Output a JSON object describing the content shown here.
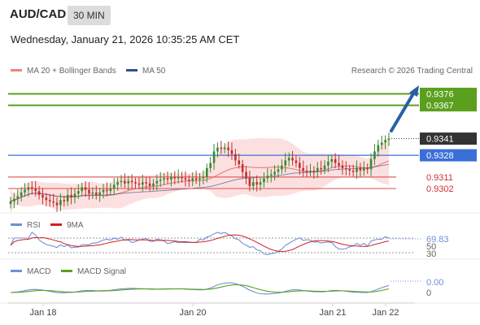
{
  "header": {
    "symbol": "AUD/CAD",
    "interval": "30 MIN",
    "datetime": "Wednesday, January 21, 2026 10:35:25 AM CET"
  },
  "legend": {
    "ma20_label": "MA 20 + Bollinger Bands",
    "ma50_label": "MA 50",
    "copyright": "Research © 2026 Trading Central",
    "rsi_label": "RSI",
    "rsi_ma_label": "9MA",
    "macd_label": "MACD",
    "macd_signal_label": "MACD Signal"
  },
  "colors": {
    "ma20": "#f08080",
    "ma50": "#2f4f8f",
    "bollinger_fill": "#fbd5d5",
    "resistance": "#5aa01e",
    "support": "#e06060",
    "pivot": "#3b6fd8",
    "current": "#333333",
    "candle_up": "#3a8a2e",
    "candle_down": "#c03030",
    "rsi": "#6f8fd8",
    "rsi_ma": "#d02020",
    "macd": "#6f8fd8",
    "macd_signal": "#5aa01e",
    "arrow": "#2a5fa8"
  },
  "levels": [
    {
      "label": "0.9376",
      "value": 0.9376,
      "kind": "resistance"
    },
    {
      "label": "0.9367",
      "value": 0.9367,
      "kind": "resistance"
    },
    {
      "label": "0.9341",
      "value": 0.9341,
      "kind": "current"
    },
    {
      "label": "0.9328",
      "value": 0.9328,
      "kind": "pivot"
    },
    {
      "label": "0.9311",
      "value": 0.9311,
      "kind": "support"
    },
    {
      "label": "0.9302",
      "value": 0.9302,
      "kind": "support"
    }
  ],
  "rsi_ticks": [
    "69.83",
    "50",
    "30"
  ],
  "macd_ticks": [
    "0.00",
    "0"
  ],
  "x_ticks": [
    "Jan 18",
    "Jan 20",
    "Jan 21",
    "Jan 22"
  ],
  "chart_data": {
    "type": "line",
    "title": "AUD/CAD 30 MIN",
    "xlabel": "",
    "ylabel": "",
    "x_ticks": [
      "Jan 18",
      "Jan 20",
      "Jan 21",
      "Jan 22"
    ],
    "ylim": [
      0.9283,
      0.9389
    ],
    "close": [
      0.9292,
      0.9294,
      0.9296,
      0.9299,
      0.9301,
      0.9303,
      0.9302,
      0.93,
      0.9297,
      0.9295,
      0.9293,
      0.9292,
      0.9291,
      0.9289,
      0.9293,
      0.9292,
      0.9297,
      0.9295,
      0.9298,
      0.93,
      0.9303,
      0.9301,
      0.9298,
      0.9299,
      0.9297,
      0.9299,
      0.9301,
      0.93,
      0.9302,
      0.9305,
      0.9307,
      0.9308,
      0.9306,
      0.9308,
      0.9307,
      0.9306,
      0.9305,
      0.9307,
      0.9306,
      0.9304,
      0.9306,
      0.9308,
      0.9309,
      0.931,
      0.9309,
      0.9311,
      0.931,
      0.9311,
      0.931,
      0.9309,
      0.9308,
      0.931,
      0.9309,
      0.931,
      0.9311,
      0.9318,
      0.9322,
      0.9331,
      0.9334,
      0.9333,
      0.9334,
      0.9332,
      0.9329,
      0.9324,
      0.9321,
      0.9315,
      0.931,
      0.9304,
      0.9307,
      0.9305,
      0.9307,
      0.931,
      0.9312,
      0.9313,
      0.9315,
      0.9317,
      0.932,
      0.9324,
      0.9326,
      0.9324,
      0.9322,
      0.9318,
      0.9316,
      0.9315,
      0.9316,
      0.9315,
      0.9318,
      0.9317,
      0.932,
      0.9323,
      0.9325,
      0.9322,
      0.932,
      0.9318,
      0.9317,
      0.9316,
      0.9315,
      0.9318,
      0.9316,
      0.9318,
      0.9317,
      0.9325,
      0.9331,
      0.9336,
      0.9338,
      0.934,
      0.9341
    ],
    "series": [
      {
        "name": "MA 20 + Bollinger Bands"
      },
      {
        "name": "MA 50"
      },
      {
        "name": "RSI"
      },
      {
        "name": "9MA"
      },
      {
        "name": "MACD"
      },
      {
        "name": "MACD Signal"
      }
    ],
    "rsi_last": 69.83,
    "forecast_targets": [
      0.9367,
      0.9376
    ],
    "support_levels": [
      0.9311,
      0.9302
    ],
    "pivot": 0.9328,
    "last_price": 0.9341,
    "grid": false,
    "legend_position": "top-left"
  }
}
